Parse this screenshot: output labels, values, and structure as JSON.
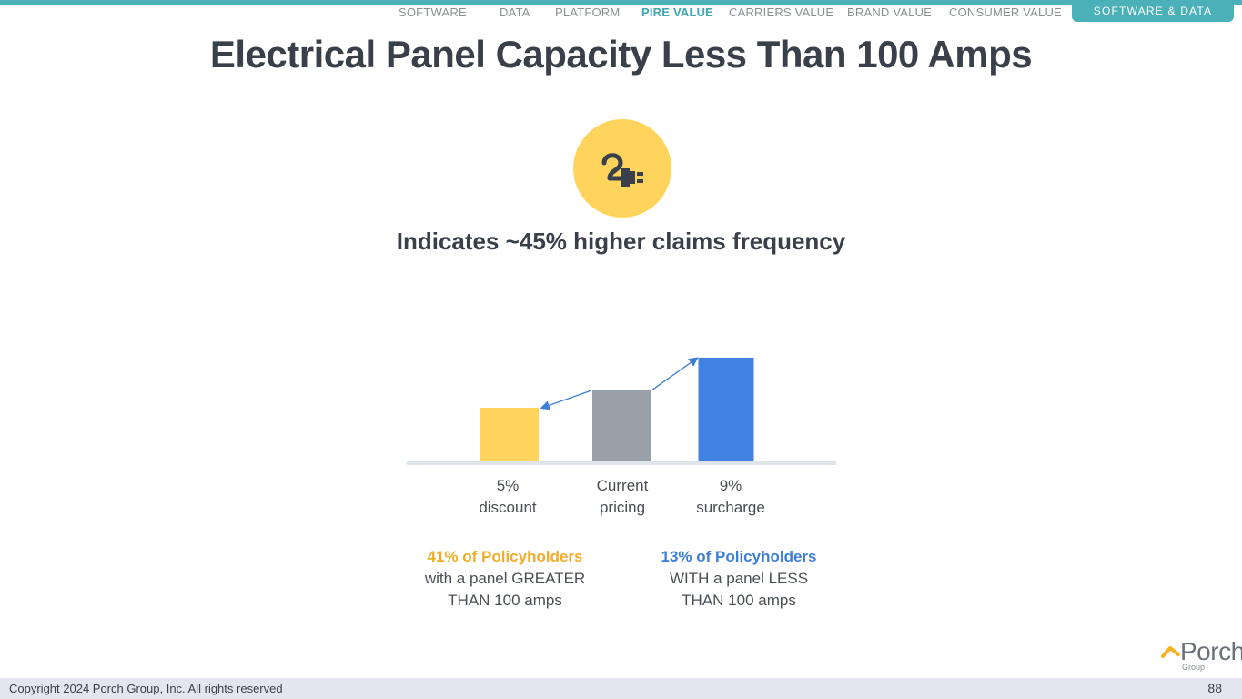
{
  "nav": {
    "items": [
      "SOFTWARE",
      "DATA",
      "PLATFORM",
      "PIRE VALUE",
      "CARRIERS VALUE",
      "BRAND VALUE",
      "CONSUMER VALUE"
    ],
    "active_index": 3,
    "section_tab": "SOFTWARE & DATA"
  },
  "slide": {
    "title": "Electrical Panel Capacity Less Than 100 Amps",
    "icon": "electric-plug-icon",
    "headline": "Indicates ~45% higher claims frequency"
  },
  "chart_data": {
    "type": "bar",
    "categories": [
      "5% discount",
      "Current pricing",
      "9% surcharge"
    ],
    "category_lines": [
      [
        "5%",
        "discount"
      ],
      [
        "Current",
        "pricing"
      ],
      [
        "9%",
        "surcharge"
      ]
    ],
    "values": [
      95,
      100,
      109
    ],
    "colors": [
      "#ffd45c",
      "#9aa0a8",
      "#4181e1"
    ],
    "arrows": [
      "from Current pricing to 5% discount",
      "from Current pricing to 9% surcharge"
    ],
    "title": "",
    "xlabel": "",
    "ylabel": ""
  },
  "stats": [
    {
      "highlight": "41% of Policyholders",
      "line1": "with a panel GREATER",
      "line2": "THAN 100 amps",
      "color": "#f0ad2a"
    },
    {
      "highlight": "13% of Policyholders",
      "line1": "WITH a panel LESS",
      "line2": "THAN 100 amps",
      "color": "#3d7ed8"
    }
  ],
  "logo": {
    "name": "Porch",
    "sub": "Group"
  },
  "footer": {
    "copyright": "Copyright 2024 Porch Group, Inc. All rights reserved",
    "page": "88"
  }
}
